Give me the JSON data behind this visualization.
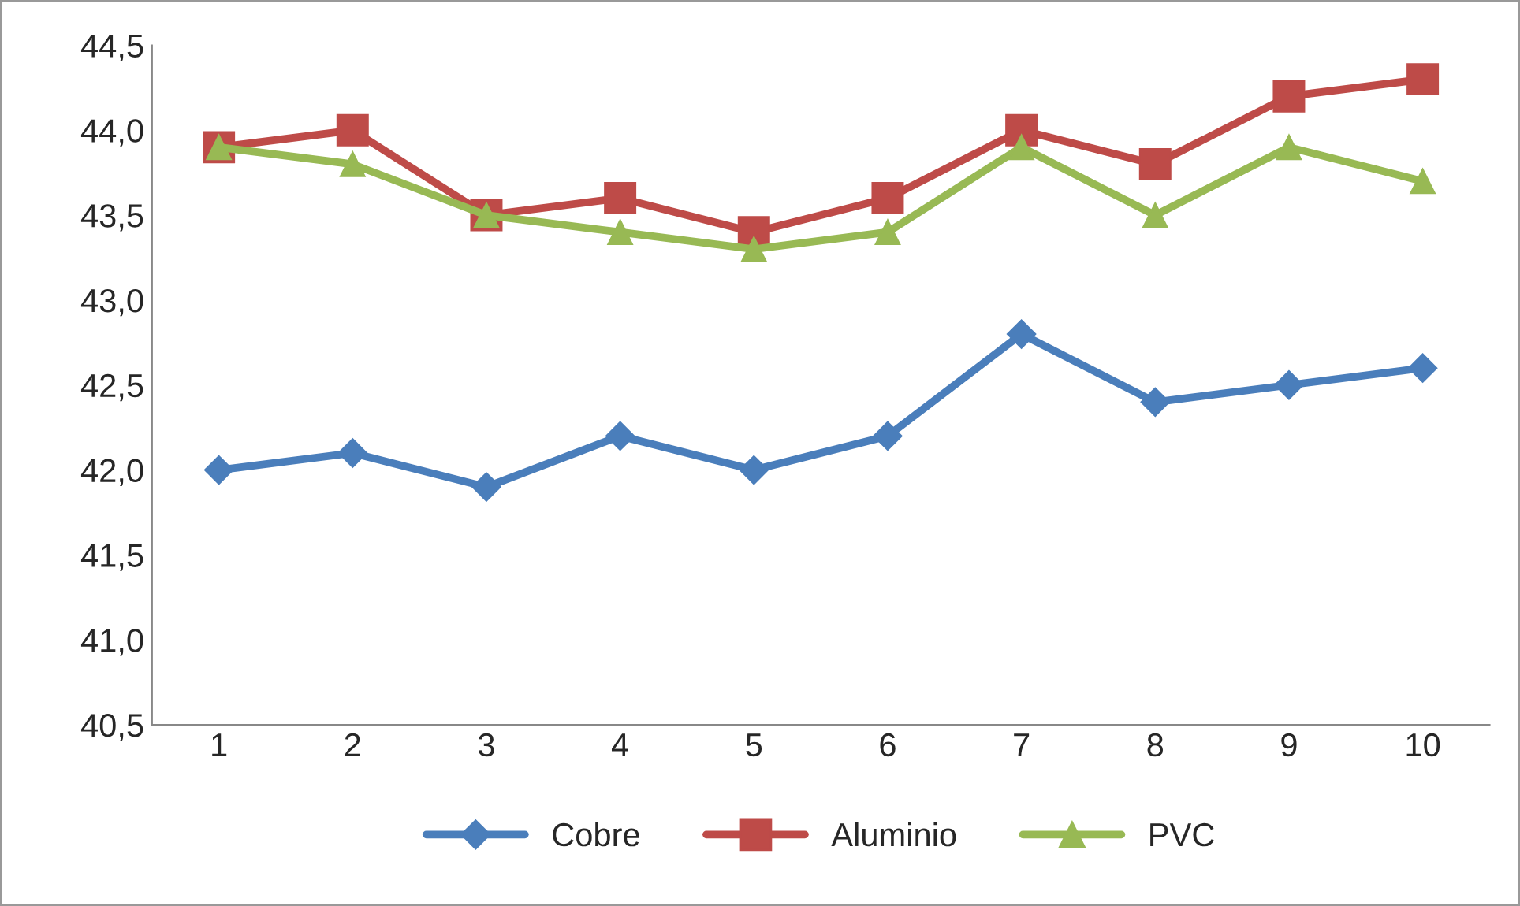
{
  "chart_data": {
    "type": "line",
    "categories": [
      "1",
      "2",
      "3",
      "4",
      "5",
      "6",
      "7",
      "8",
      "9",
      "10"
    ],
    "series": [
      {
        "name": "Cobre",
        "color": "#4a7ebb",
        "marker": "diamond",
        "values": [
          42.0,
          42.1,
          41.9,
          42.2,
          42.0,
          42.2,
          42.8,
          42.4,
          42.5,
          42.6
        ]
      },
      {
        "name": "Aluminio",
        "color": "#be4b48",
        "marker": "square",
        "values": [
          43.9,
          44.0,
          43.5,
          43.6,
          43.4,
          43.6,
          44.0,
          43.8,
          44.2,
          44.3
        ]
      },
      {
        "name": "PVC",
        "color": "#98b954",
        "marker": "triangle",
        "values": [
          43.9,
          43.8,
          43.5,
          43.4,
          43.3,
          43.4,
          43.9,
          43.5,
          43.9,
          43.7
        ]
      }
    ],
    "ylim": [
      40.5,
      44.5
    ],
    "yticks": [
      {
        "value": 40.5,
        "label": "40,5"
      },
      {
        "value": 41.0,
        "label": "41,0"
      },
      {
        "value": 41.5,
        "label": "41,5"
      },
      {
        "value": 42.0,
        "label": "42,0"
      },
      {
        "value": 42.5,
        "label": "42,5"
      },
      {
        "value": 43.0,
        "label": "43,0"
      },
      {
        "value": 43.5,
        "label": "43,5"
      },
      {
        "value": 44.0,
        "label": "44,0"
      },
      {
        "value": 44.5,
        "label": "44,5"
      }
    ],
    "grid": false,
    "legend": "bottom"
  }
}
